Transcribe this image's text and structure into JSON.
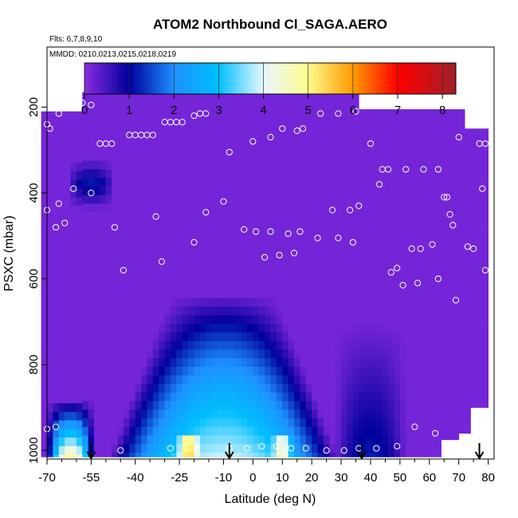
{
  "chart_data": {
    "type": "heatmap",
    "title": "ATOM2 Northbound Cl_SAGA.AERO",
    "flights_note": "Flts: 6,7,8,9,10",
    "dates_note": "MMDD: 0210,0213,0215,0218,0219",
    "xlabel": "Latitude (deg N)",
    "ylabel": "PSXC (mbar)",
    "xlim": [
      -70,
      82
    ],
    "ylim": [
      1020,
      60
    ],
    "y_inverted": true,
    "x_ticks": [
      -70,
      -55,
      -40,
      -25,
      -10,
      0,
      10,
      20,
      30,
      40,
      50,
      60,
      70,
      80
    ],
    "x_tick_labels": [
      "-70",
      "-55",
      "-40",
      "-25",
      "-10",
      "0",
      "10",
      "20",
      "30",
      "40",
      "50",
      "60",
      "70",
      "80"
    ],
    "x_minor_ticks": [
      -65,
      -60,
      -50,
      -45,
      -35,
      -30,
      -20,
      -15,
      -5,
      5,
      15,
      25,
      35,
      45,
      55,
      65,
      75
    ],
    "y_ticks": [
      200,
      400,
      600,
      800,
      1000
    ],
    "y_tick_labels": [
      "200",
      "400",
      "600",
      "800",
      "1000"
    ],
    "colorbar": {
      "min": 0,
      "max": 8.3,
      "ticks": [
        0,
        1,
        2,
        3,
        4,
        5,
        6,
        7,
        8
      ],
      "tick_labels": [
        "0",
        "1",
        "2",
        "3",
        "4",
        "5",
        "6",
        "7",
        "8"
      ],
      "colors": [
        "#8a2be2",
        "#00009c",
        "#1e90ff",
        "#00bfff",
        "#e6f7ff",
        "#fffb8c",
        "#ff9a00",
        "#ff0000",
        "#a0202a"
      ],
      "color_stops": [
        0,
        1,
        2,
        3,
        4,
        5,
        6,
        7,
        8.3
      ]
    },
    "field_extent": {
      "lat": [
        -72,
        80
      ],
      "pressure_top": [
        165,
        205
      ]
    },
    "field_components": [
      {
        "name": "tropical-dome",
        "lat_center": -10,
        "lat_halfwidth_surface": 38,
        "lat_halfwidth_top": 18,
        "pressure_top": 640,
        "amplitude": 3.6
      },
      {
        "name": "southern-boundary-layer",
        "lat_center": -62,
        "lat_halfwidth": 8,
        "pressure_top": 880,
        "amplitude": 4.2
      },
      {
        "name": "southern-midlevel-band",
        "lat_center": -55,
        "lat_halfwidth": 8,
        "pressure_center": 380,
        "amplitude": 1.1
      },
      {
        "name": "northern-subtropical-dip",
        "lat_center": 40,
        "lat_halfwidth": 12,
        "pressure_top": 700,
        "amplitude": 1.0
      },
      {
        "name": "surface-hotspot-south",
        "lat_center": -22,
        "pressure_bottom": 960,
        "amplitude": 5.3
      },
      {
        "name": "surface-hotspot-north",
        "lat_center": 10,
        "pressure_bottom": 960,
        "amplitude": 5.0
      }
    ],
    "sample_points": [
      {
        "lat": -70,
        "p": 240
      },
      {
        "lat": -69,
        "p": 250
      },
      {
        "lat": -66,
        "p": 215
      },
      {
        "lat": -64,
        "p": 200
      },
      {
        "lat": -61,
        "p": 195
      },
      {
        "lat": -58,
        "p": 190
      },
      {
        "lat": -55,
        "p": 195
      },
      {
        "lat": -52,
        "p": 285
      },
      {
        "lat": -50,
        "p": 285
      },
      {
        "lat": -48,
        "p": 285
      },
      {
        "lat": -42,
        "p": 265
      },
      {
        "lat": -40,
        "p": 265
      },
      {
        "lat": -38,
        "p": 265
      },
      {
        "lat": -36,
        "p": 265
      },
      {
        "lat": -34,
        "p": 265
      },
      {
        "lat": -30,
        "p": 235
      },
      {
        "lat": -28,
        "p": 235
      },
      {
        "lat": -26,
        "p": 235
      },
      {
        "lat": -24,
        "p": 235
      },
      {
        "lat": -20,
        "p": 220
      },
      {
        "lat": -18,
        "p": 215
      },
      {
        "lat": -16,
        "p": 215
      },
      {
        "lat": -8,
        "p": 305
      },
      {
        "lat": 0,
        "p": 280
      },
      {
        "lat": 6,
        "p": 270
      },
      {
        "lat": 10,
        "p": 250
      },
      {
        "lat": 15,
        "p": 255
      },
      {
        "lat": 17,
        "p": 250
      },
      {
        "lat": 23,
        "p": 215
      },
      {
        "lat": 29,
        "p": 215
      },
      {
        "lat": 35,
        "p": 210
      },
      {
        "lat": 40,
        "p": 285
      },
      {
        "lat": 44,
        "p": 345
      },
      {
        "lat": 46,
        "p": 345
      },
      {
        "lat": 52,
        "p": 345
      },
      {
        "lat": 58,
        "p": 345
      },
      {
        "lat": 63,
        "p": 345
      },
      {
        "lat": 70,
        "p": 270
      },
      {
        "lat": 77,
        "p": 285
      },
      {
        "lat": 79,
        "p": 285
      },
      {
        "lat": -70,
        "p": 440
      },
      {
        "lat": -67,
        "p": 480
      },
      {
        "lat": -66,
        "p": 425
      },
      {
        "lat": -64,
        "p": 470
      },
      {
        "lat": -61,
        "p": 390
      },
      {
        "lat": -55,
        "p": 400
      },
      {
        "lat": -47,
        "p": 480
      },
      {
        "lat": -44,
        "p": 580
      },
      {
        "lat": -33,
        "p": 455
      },
      {
        "lat": -31,
        "p": 560
      },
      {
        "lat": -20,
        "p": 515
      },
      {
        "lat": -16,
        "p": 445
      },
      {
        "lat": -10,
        "p": 420
      },
      {
        "lat": -3,
        "p": 485
      },
      {
        "lat": 1,
        "p": 490
      },
      {
        "lat": 4,
        "p": 550
      },
      {
        "lat": 6,
        "p": 490
      },
      {
        "lat": 9,
        "p": 545
      },
      {
        "lat": 12,
        "p": 495
      },
      {
        "lat": 14,
        "p": 540
      },
      {
        "lat": 16,
        "p": 490
      },
      {
        "lat": 22,
        "p": 505
      },
      {
        "lat": 27,
        "p": 440
      },
      {
        "lat": 29,
        "p": 505
      },
      {
        "lat": 33,
        "p": 440
      },
      {
        "lat": 34,
        "p": 515
      },
      {
        "lat": 36,
        "p": 430
      },
      {
        "lat": 43,
        "p": 380
      },
      {
        "lat": 47,
        "p": 585
      },
      {
        "lat": 49,
        "p": 575
      },
      {
        "lat": 51,
        "p": 615
      },
      {
        "lat": 54,
        "p": 530
      },
      {
        "lat": 56,
        "p": 610
      },
      {
        "lat": 57,
        "p": 530
      },
      {
        "lat": 61,
        "p": 520
      },
      {
        "lat": 63,
        "p": 600
      },
      {
        "lat": 65,
        "p": 410
      },
      {
        "lat": 66,
        "p": 410
      },
      {
        "lat": 67,
        "p": 450
      },
      {
        "lat": 68,
        "p": 475
      },
      {
        "lat": 69,
        "p": 650
      },
      {
        "lat": 73,
        "p": 525
      },
      {
        "lat": 75,
        "p": 530
      },
      {
        "lat": 78,
        "p": 390
      },
      {
        "lat": 79,
        "p": 580
      },
      {
        "lat": -70,
        "p": 950
      },
      {
        "lat": -67,
        "p": 945
      },
      {
        "lat": -45,
        "p": 1000
      },
      {
        "lat": -28,
        "p": 995
      },
      {
        "lat": -19,
        "p": 995
      },
      {
        "lat": -8,
        "p": 995
      },
      {
        "lat": -2,
        "p": 995
      },
      {
        "lat": 3,
        "p": 990
      },
      {
        "lat": 8,
        "p": 990
      },
      {
        "lat": 13,
        "p": 995
      },
      {
        "lat": 18,
        "p": 995
      },
      {
        "lat": 25,
        "p": 1000
      },
      {
        "lat": 31,
        "p": 1000
      },
      {
        "lat": 36,
        "p": 995
      },
      {
        "lat": 42,
        "p": 995
      },
      {
        "lat": 49,
        "p": 990
      },
      {
        "lat": 55,
        "p": 945
      },
      {
        "lat": 62,
        "p": 960
      },
      {
        "lat": 72,
        "p": 985
      }
    ],
    "arrow_lats": [
      -55,
      -8,
      37,
      77
    ]
  }
}
